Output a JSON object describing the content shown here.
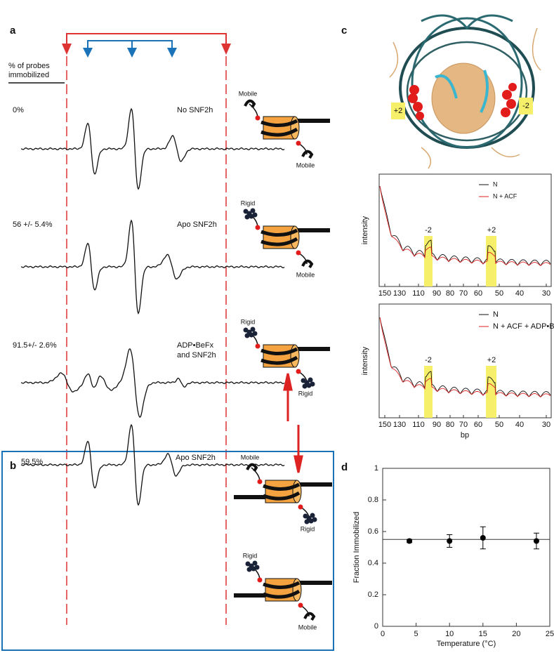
{
  "panel_a": {
    "label": "a",
    "header": [
      "% of probes",
      "immobilized"
    ],
    "rows": [
      {
        "percent": "0%",
        "condition": [
          "No SNF2h"
        ],
        "probes": [
          "Mobile",
          "Mobile"
        ]
      },
      {
        "percent": "56 +/- 5.4%",
        "condition": [
          "Apo SNF2h"
        ],
        "probes": [
          "Rigid",
          "Mobile"
        ]
      },
      {
        "percent": "91.5+/- 2.6%",
        "condition": [
          "ADP•BeFx",
          "and SNF2h"
        ],
        "probes": [
          "Rigid",
          "Rigid"
        ]
      }
    ]
  },
  "panel_b": {
    "label": "b",
    "percent": "59.5%",
    "condition": "Apo SNF2h",
    "states": [
      [
        "Mobile",
        "Rigid"
      ],
      [
        "Rigid",
        "Mobile"
      ]
    ]
  },
  "panel_c": {
    "label": "c",
    "structure_labels": [
      "+2",
      "-2"
    ],
    "plots": [
      {
        "y_label": "intensity",
        "legend": [
          "N",
          "N + ACF"
        ],
        "peaks": [
          "-2",
          "+2"
        ]
      },
      {
        "y_label": "intensity",
        "legend": [
          "N",
          "N + ACF + ADP•BeFx"
        ],
        "peaks": [
          "-2",
          "+2"
        ]
      }
    ],
    "x_ticks": [
      150,
      130,
      110,
      90,
      80,
      70,
      60,
      50,
      40,
      30
    ],
    "x_label": "bp"
  },
  "chart_data": {
    "type": "scatter",
    "label": "d",
    "x": [
      4,
      10,
      15,
      23
    ],
    "values": [
      0.54,
      0.54,
      0.56,
      0.54
    ],
    "errors": [
      0.01,
      0.04,
      0.07,
      0.05
    ],
    "reference_line": 0.55,
    "color": "#000000",
    "xlim": [
      0,
      25
    ],
    "xticks": [
      0,
      5,
      10,
      15,
      20,
      25
    ],
    "ylim": [
      0,
      1
    ],
    "yticks": [
      0,
      0.2,
      0.4,
      0.6,
      0.8,
      1
    ],
    "x_label": "Temperature (°C)",
    "y_label": "Fraction Immobilized"
  }
}
